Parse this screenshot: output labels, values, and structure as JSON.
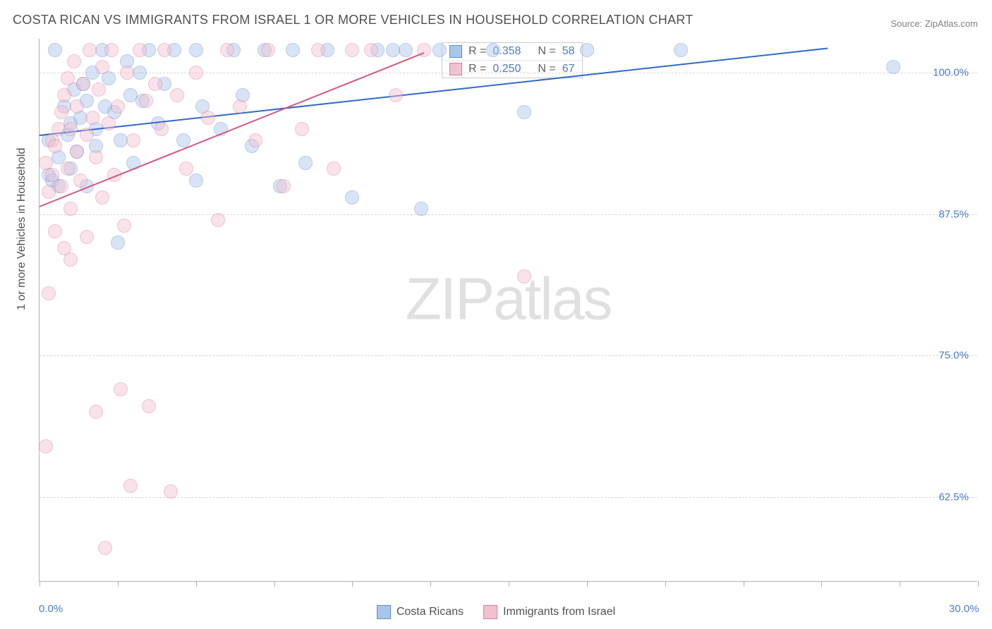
{
  "title": "COSTA RICAN VS IMMIGRANTS FROM ISRAEL 1 OR MORE VEHICLES IN HOUSEHOLD CORRELATION CHART",
  "source_label": "Source: ",
  "source_name": "ZipAtlas.com",
  "ylabel": "1 or more Vehicles in Household",
  "watermark_bold": "ZIP",
  "watermark_light": "atlas",
  "chart": {
    "type": "scatter",
    "xlim": [
      0,
      30
    ],
    "ylim": [
      55,
      103
    ],
    "xticks": [
      0,
      2.5,
      5,
      7.5,
      10,
      12.5,
      15,
      17.5,
      20,
      22.5,
      25,
      27.5,
      30
    ],
    "xtick_labels": {
      "0": "0.0%",
      "30": "30.0%"
    },
    "yticks": [
      62.5,
      75.0,
      87.5,
      100.0
    ],
    "ytick_labels": [
      "62.5%",
      "75.0%",
      "87.5%",
      "100.0%"
    ],
    "background_color": "#ffffff",
    "grid_color": "#d5d5d5",
    "axis_color": "#b0b0b0",
    "point_radius": 10,
    "point_opacity": 0.45,
    "series": [
      {
        "name": "Costa Ricans",
        "color_fill": "#a9c5ea",
        "color_stroke": "#5a8fd6",
        "r_value": "0.358",
        "n_value": "58",
        "trend": {
          "x1": 0,
          "y1": 94.5,
          "x2": 25.2,
          "y2": 102.2,
          "color": "#2f6ac7",
          "width": 2
        },
        "points": [
          [
            0.3,
            91.0
          ],
          [
            0.3,
            94.0
          ],
          [
            0.4,
            90.5
          ],
          [
            0.5,
            102.0
          ],
          [
            0.6,
            92.5
          ],
          [
            0.6,
            90.0
          ],
          [
            0.8,
            97.0
          ],
          [
            0.9,
            94.5
          ],
          [
            1.0,
            91.5
          ],
          [
            1.0,
            95.5
          ],
          [
            1.1,
            98.5
          ],
          [
            1.2,
            93.0
          ],
          [
            1.3,
            96.0
          ],
          [
            1.4,
            99.0
          ],
          [
            1.5,
            90.0
          ],
          [
            1.5,
            97.5
          ],
          [
            1.7,
            100.0
          ],
          [
            1.8,
            95.0
          ],
          [
            1.8,
            93.5
          ],
          [
            2.0,
            102.0
          ],
          [
            2.1,
            97.0
          ],
          [
            2.2,
            99.5
          ],
          [
            2.4,
            96.5
          ],
          [
            2.5,
            85.0
          ],
          [
            2.6,
            94.0
          ],
          [
            2.8,
            101.0
          ],
          [
            2.9,
            98.0
          ],
          [
            3.0,
            92.0
          ],
          [
            3.2,
            100.0
          ],
          [
            3.3,
            97.5
          ],
          [
            3.5,
            102.0
          ],
          [
            3.8,
            95.5
          ],
          [
            4.0,
            99.0
          ],
          [
            4.3,
            102.0
          ],
          [
            4.6,
            94.0
          ],
          [
            5.0,
            102.0
          ],
          [
            5.2,
            97.0
          ],
          [
            5.8,
            95.0
          ],
          [
            5.0,
            90.5
          ],
          [
            6.2,
            102.0
          ],
          [
            6.5,
            98.0
          ],
          [
            6.8,
            93.5
          ],
          [
            7.2,
            102.0
          ],
          [
            7.7,
            90.0
          ],
          [
            8.1,
            102.0
          ],
          [
            8.5,
            92.0
          ],
          [
            9.2,
            102.0
          ],
          [
            10.0,
            89.0
          ],
          [
            10.8,
            102.0
          ],
          [
            11.3,
            102.0
          ],
          [
            11.7,
            102.0
          ],
          [
            12.2,
            88.0
          ],
          [
            12.8,
            102.0
          ],
          [
            14.5,
            102.0
          ],
          [
            15.5,
            96.5
          ],
          [
            17.5,
            102.0
          ],
          [
            20.5,
            102.0
          ],
          [
            27.3,
            100.5
          ]
        ]
      },
      {
        "name": "Immigrants from Israel",
        "color_fill": "#f3c0cf",
        "color_stroke": "#e07a9a",
        "r_value": "0.250",
        "n_value": "67",
        "trend": {
          "x1": 0,
          "y1": 88.2,
          "x2": 12.3,
          "y2": 101.8,
          "color": "#d6567f",
          "width": 2
        },
        "points": [
          [
            0.2,
            67.0
          ],
          [
            0.2,
            92.0
          ],
          [
            0.3,
            89.5
          ],
          [
            0.3,
            80.5
          ],
          [
            0.4,
            94.0
          ],
          [
            0.4,
            91.0
          ],
          [
            0.5,
            86.0
          ],
          [
            0.5,
            93.5
          ],
          [
            0.6,
            95.0
          ],
          [
            0.7,
            90.0
          ],
          [
            0.7,
            96.5
          ],
          [
            0.8,
            84.5
          ],
          [
            0.8,
            98.0
          ],
          [
            0.9,
            91.5
          ],
          [
            0.9,
            99.5
          ],
          [
            1.0,
            88.0
          ],
          [
            1.0,
            95.0
          ],
          [
            1.1,
            101.0
          ],
          [
            1.2,
            93.0
          ],
          [
            1.2,
            97.0
          ],
          [
            1.3,
            90.5
          ],
          [
            1.4,
            99.0
          ],
          [
            1.5,
            94.5
          ],
          [
            1.5,
            85.5
          ],
          [
            1.6,
            102.0
          ],
          [
            1.7,
            96.0
          ],
          [
            1.8,
            70.0
          ],
          [
            1.8,
            92.5
          ],
          [
            1.9,
            98.5
          ],
          [
            2.0,
            89.0
          ],
          [
            2.0,
            100.5
          ],
          [
            2.1,
            58.0
          ],
          [
            2.2,
            95.5
          ],
          [
            2.3,
            102.0
          ],
          [
            2.4,
            91.0
          ],
          [
            2.5,
            97.0
          ],
          [
            2.6,
            72.0
          ],
          [
            2.7,
            86.5
          ],
          [
            2.8,
            100.0
          ],
          [
            2.9,
            63.5
          ],
          [
            3.0,
            94.0
          ],
          [
            3.2,
            102.0
          ],
          [
            3.4,
            97.5
          ],
          [
            3.5,
            70.5
          ],
          [
            3.7,
            99.0
          ],
          [
            3.9,
            95.0
          ],
          [
            4.0,
            102.0
          ],
          [
            4.2,
            63.0
          ],
          [
            4.4,
            98.0
          ],
          [
            4.7,
            91.5
          ],
          [
            5.0,
            100.0
          ],
          [
            5.4,
            96.0
          ],
          [
            5.7,
            87.0
          ],
          [
            6.0,
            102.0
          ],
          [
            6.4,
            97.0
          ],
          [
            6.9,
            94.0
          ],
          [
            7.3,
            102.0
          ],
          [
            7.8,
            90.0
          ],
          [
            8.4,
            95.0
          ],
          [
            8.9,
            102.0
          ],
          [
            9.4,
            91.5
          ],
          [
            10.0,
            102.0
          ],
          [
            10.6,
            102.0
          ],
          [
            11.4,
            98.0
          ],
          [
            12.3,
            102.0
          ],
          [
            15.5,
            82.0
          ],
          [
            1.0,
            83.5
          ]
        ]
      }
    ]
  },
  "legend": {
    "s1_label": "Costa Ricans",
    "s2_label": "Immigrants from Israel"
  },
  "stats": {
    "r_label": "R =",
    "n_label": "N ="
  }
}
